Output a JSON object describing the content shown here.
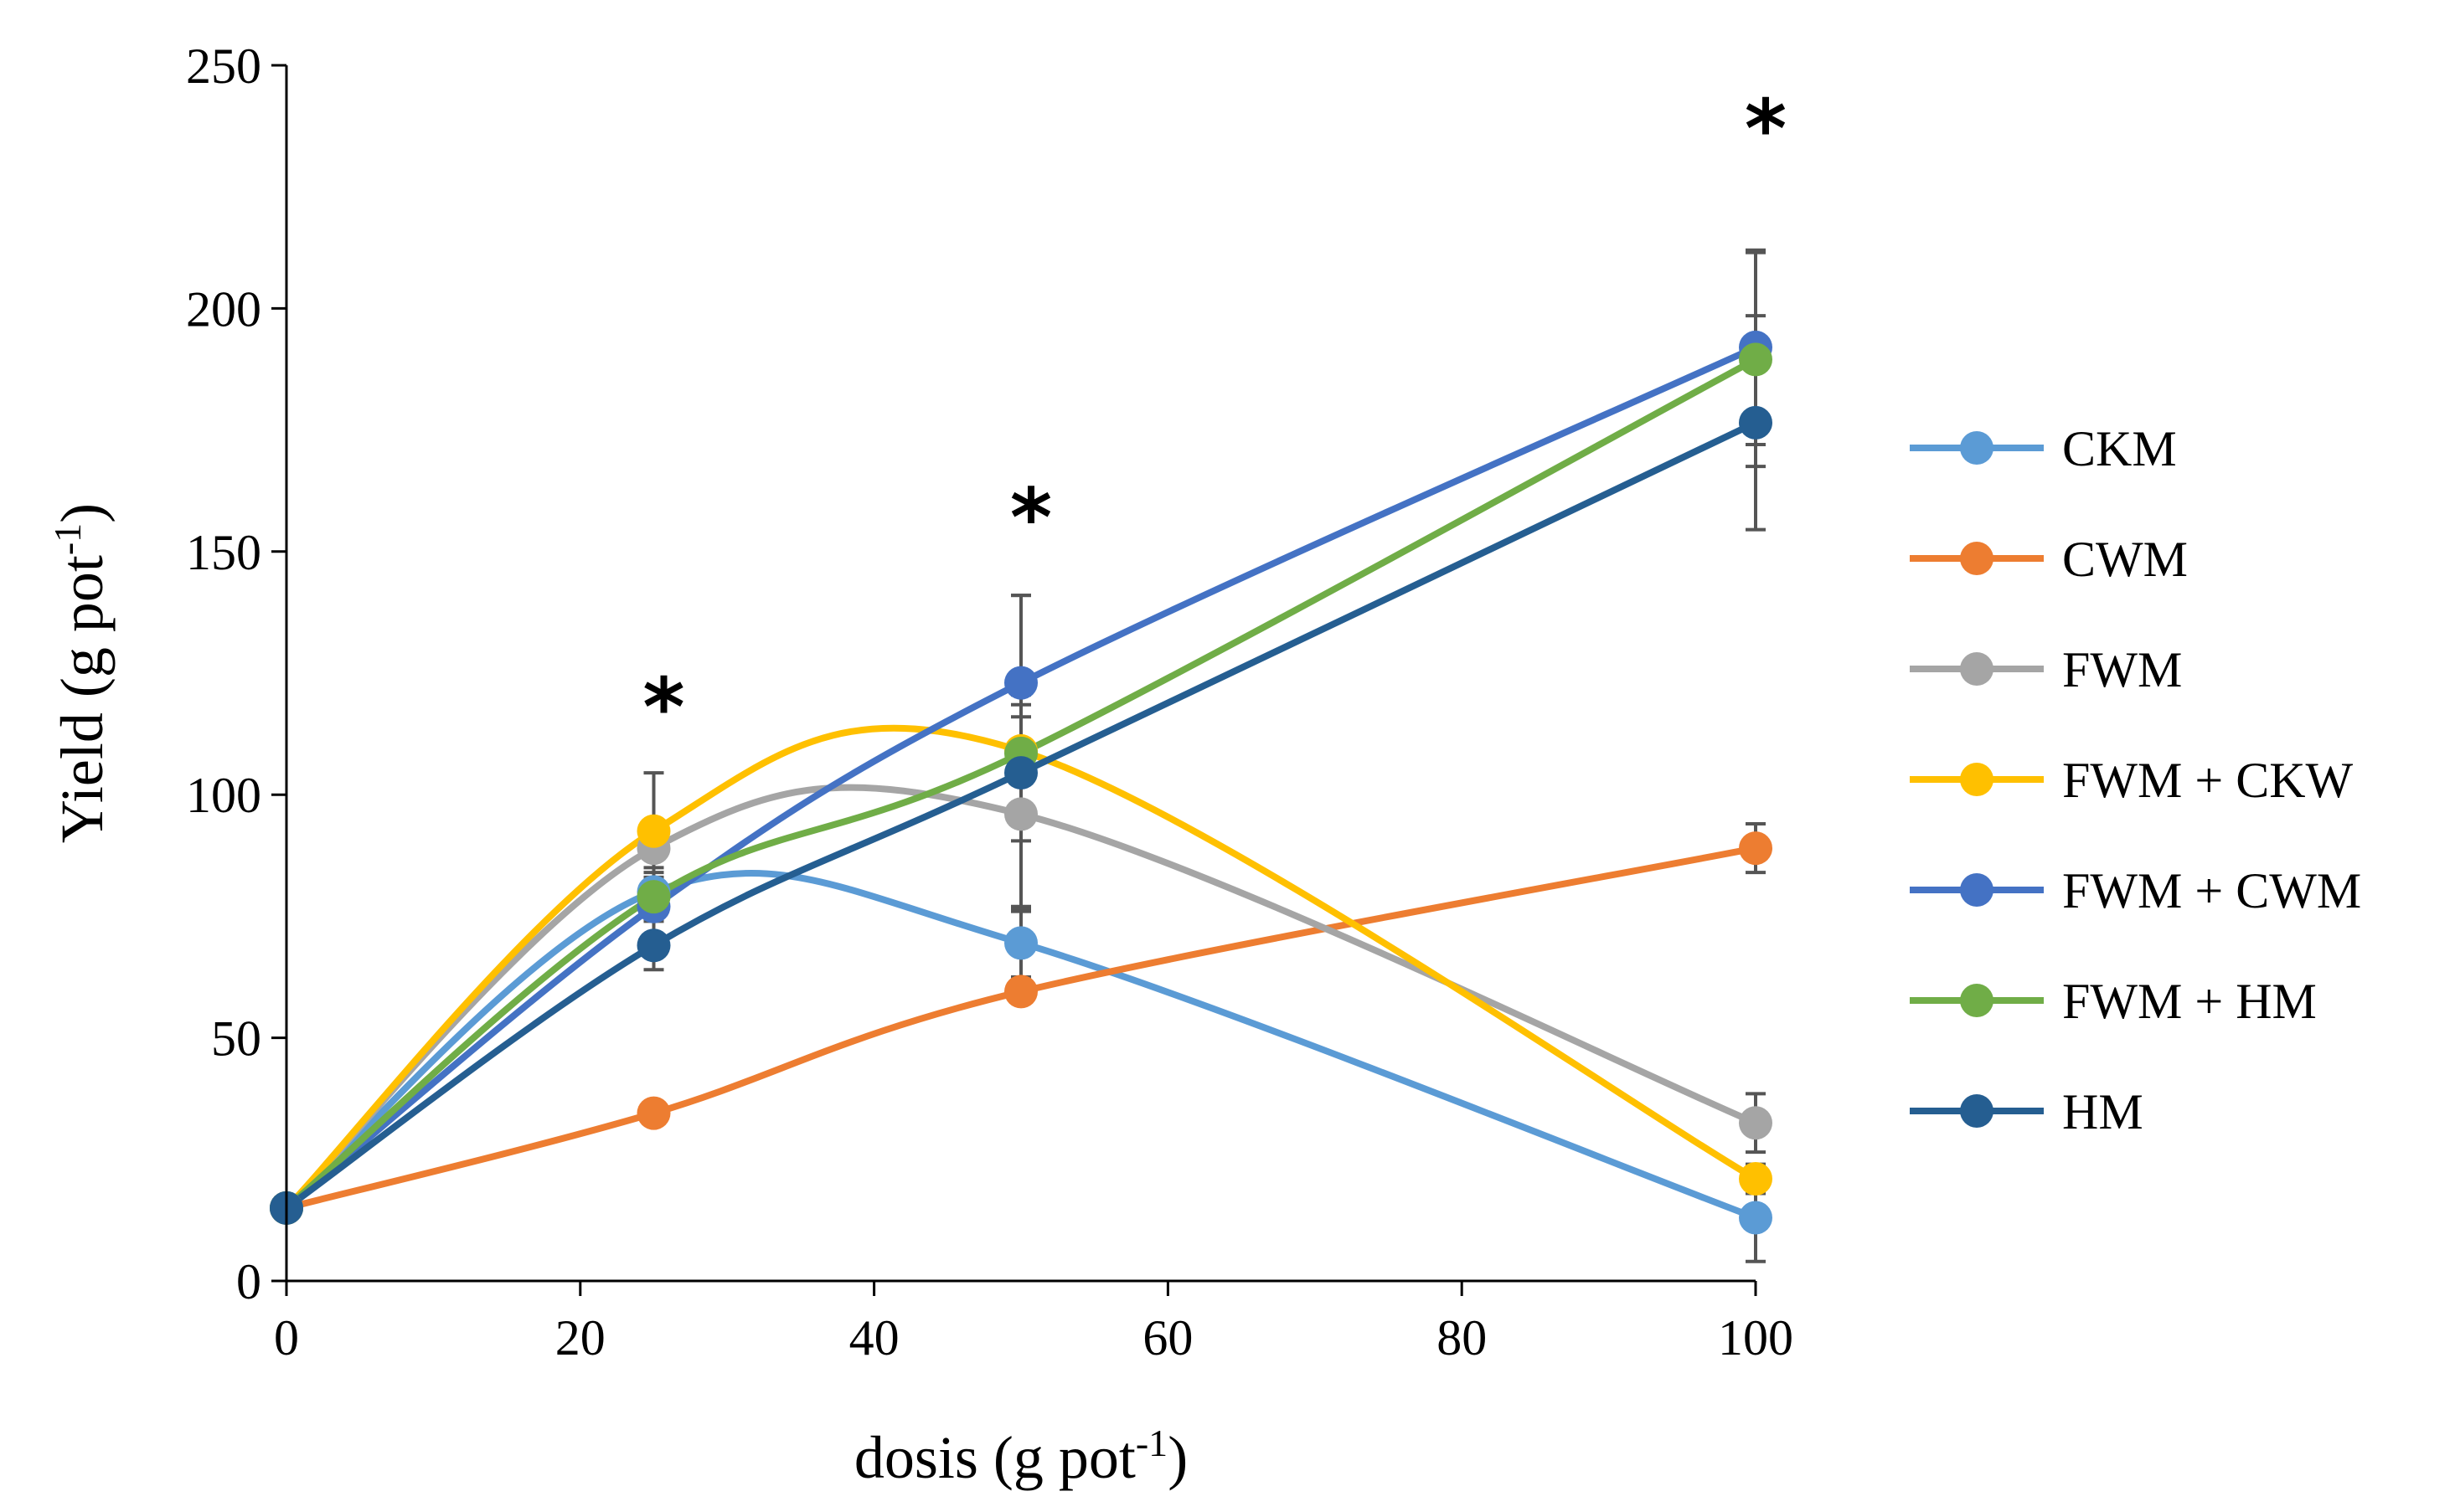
{
  "chart_data": {
    "type": "line",
    "title": "",
    "xlabel": {
      "main": "dosis (g pot",
      "sup": "-1",
      "close": ")"
    },
    "ylabel": {
      "main": "Yield (g pot",
      "sup": "-1",
      "close": ")"
    },
    "xlim": [
      0,
      100
    ],
    "ylim": [
      0,
      250
    ],
    "xticks": [
      0,
      20,
      40,
      60,
      80,
      100
    ],
    "yticks": [
      0,
      50,
      100,
      150,
      200,
      250
    ],
    "grid": false,
    "legend_position": "right",
    "x": [
      0,
      25,
      50,
      100
    ],
    "series": [
      {
        "name": "CKM",
        "color": "#5B9BD5",
        "values": [
          15,
          80,
          69.5,
          13
        ],
        "errors": [
          0,
          4,
          7,
          9
        ]
      },
      {
        "name": "CWM",
        "color": "#ED7D31",
        "values": [
          15,
          34.5,
          59.5,
          89
        ],
        "errors": [
          0,
          2,
          2,
          5
        ]
      },
      {
        "name": "FWM",
        "color": "#A5A5A5",
        "values": [
          15,
          89,
          96,
          32.5
        ],
        "errors": [
          0,
          4,
          20,
          6
        ]
      },
      {
        "name": "FWM + CKW",
        "color": "#FFC000",
        "values": [
          15,
          92.5,
          109,
          21
        ],
        "errors": [
          0,
          12,
          32,
          3
        ]
      },
      {
        "name": "FWM + CWM",
        "color": "#4472C4",
        "values": [
          15,
          77,
          123,
          192
        ],
        "errors": [
          0,
          3,
          18,
          20
        ]
      },
      {
        "name": "FWM + HM",
        "color": "#70AD47",
        "values": [
          15,
          79,
          108.5,
          189.5
        ],
        "errors": [
          0,
          4,
          12,
          22
        ]
      },
      {
        "name": "HM",
        "color": "#255E91",
        "values": [
          15,
          69,
          104.5,
          176.5
        ],
        "errors": [
          0,
          5,
          14,
          22
        ]
      }
    ],
    "annotations": [
      {
        "text": "*",
        "x": 25,
        "y": 118
      },
      {
        "text": "*",
        "x": 50,
        "y": 157
      },
      {
        "text": "*",
        "x": 100,
        "y": 237
      }
    ]
  }
}
